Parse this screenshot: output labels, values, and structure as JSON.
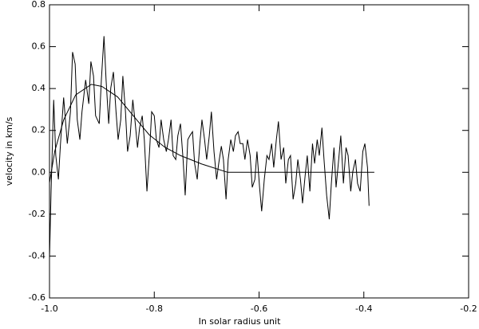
{
  "chart_data": {
    "type": "line",
    "xlabel": "In solar radius unit",
    "ylabel": "velocity in km/s",
    "xlim": [
      -1.0,
      -0.2
    ],
    "ylim": [
      -0.6,
      0.8
    ],
    "xticks": [
      {
        "value": -1.0,
        "label": "-1.0"
      },
      -0.8,
      -0.6,
      -0.4,
      -0.2
    ],
    "yticks": [
      -0.6,
      -0.4,
      -0.2,
      {
        "value": 0,
        "label": "0.0"
      },
      0.2,
      0.4,
      0.6,
      0.8
    ],
    "series": [
      {
        "color": "#000000",
        "x": [
          -1.0,
          -0.997,
          -0.992,
          -0.988,
          -0.983,
          -0.979,
          -0.973,
          -0.966,
          -0.96,
          -0.956,
          -0.951,
          -0.947,
          -0.942,
          -0.938,
          -0.931,
          -0.925,
          -0.921,
          -0.916,
          -0.912,
          -0.905,
          -0.901,
          -0.896,
          -0.892,
          -0.887,
          -0.883,
          -0.878,
          -0.873,
          -0.869,
          -0.864,
          -0.86,
          -0.855,
          -0.851,
          -0.846,
          -0.841,
          -0.837,
          -0.832,
          -0.828,
          -0.823,
          -0.819,
          -0.814,
          -0.809,
          -0.805,
          -0.8,
          -0.796,
          -0.791,
          -0.787,
          -0.782,
          -0.777,
          -0.773,
          -0.768,
          -0.764,
          -0.759,
          -0.755,
          -0.75,
          -0.745,
          -0.741,
          -0.736,
          -0.732,
          -0.727,
          -0.723,
          -0.718,
          -0.713,
          -0.709,
          -0.704,
          -0.7,
          -0.695,
          -0.691,
          -0.686,
          -0.681,
          -0.677,
          -0.672,
          -0.668,
          -0.663,
          -0.659,
          -0.654,
          -0.649,
          -0.645,
          -0.64,
          -0.636,
          -0.631,
          -0.627,
          -0.622,
          -0.617,
          -0.613,
          -0.608,
          -0.604,
          -0.599,
          -0.595,
          -0.59,
          -0.585,
          -0.581,
          -0.576,
          -0.572,
          -0.567,
          -0.563,
          -0.558,
          -0.553,
          -0.549,
          -0.544,
          -0.54,
          -0.535,
          -0.53,
          -0.526,
          -0.521,
          -0.517,
          -0.512,
          -0.508,
          -0.503,
          -0.498,
          -0.494,
          -0.489,
          -0.485,
          -0.48,
          -0.476,
          -0.471,
          -0.466,
          -0.462,
          -0.457,
          -0.453,
          -0.448,
          -0.444,
          -0.439,
          -0.434,
          -0.43,
          -0.425,
          -0.421,
          -0.416,
          -0.412,
          -0.407,
          -0.402,
          -0.398,
          -0.393,
          -0.39
        ],
        "values": [
          -0.414,
          -0.091,
          0.346,
          0.08,
          -0.034,
          0.137,
          0.357,
          0.137,
          0.289,
          0.574,
          0.517,
          0.251,
          0.156,
          0.289,
          0.441,
          0.327,
          0.529,
          0.46,
          0.27,
          0.232,
          0.441,
          0.65,
          0.441,
          0.232,
          0.403,
          0.479,
          0.289,
          0.156,
          0.251,
          0.46,
          0.289,
          0.099,
          0.175,
          0.346,
          0.251,
          0.118,
          0.213,
          0.27,
          0.156,
          -0.091,
          0.099,
          0.289,
          0.27,
          0.156,
          0.118,
          0.251,
          0.156,
          0.099,
          0.156,
          0.251,
          0.08,
          0.061,
          0.175,
          0.232,
          0.061,
          -0.11,
          0.156,
          0.175,
          0.194,
          0.042,
          -0.034,
          0.137,
          0.251,
          0.156,
          0.061,
          0.175,
          0.289,
          0.099,
          -0.034,
          0.042,
          0.125,
          0.061,
          -0.129,
          0.061,
          0.156,
          0.099,
          0.175,
          0.194,
          0.137,
          0.137,
          0.061,
          0.156,
          0.08,
          -0.072,
          -0.034,
          0.099,
          -0.072,
          -0.186,
          -0.034,
          0.08,
          0.061,
          0.137,
          0.023,
          0.156,
          0.243,
          0.061,
          0.118,
          -0.053,
          0.061,
          0.08,
          -0.129,
          -0.053,
          0.061,
          -0.034,
          -0.148,
          -0.015,
          0.08,
          -0.091,
          0.137,
          0.042,
          0.156,
          0.08,
          0.213,
          0.061,
          -0.11,
          -0.224,
          -0.053,
          0.118,
          -0.072,
          0.061,
          0.175,
          -0.053,
          0.118,
          0.08,
          -0.091,
          0.004,
          0.061,
          -0.053,
          -0.091,
          0.099,
          0.137,
          0.023,
          -0.16
        ]
      },
      {
        "color": "#000000",
        "x": [
          -1.0,
          -0.99,
          -0.973,
          -0.95,
          -0.92,
          -0.9,
          -0.87,
          -0.84,
          -0.81,
          -0.78,
          -0.75,
          -0.71,
          -0.66,
          -0.38
        ],
        "values": [
          -0.05,
          0.1,
          0.25,
          0.37,
          0.42,
          0.41,
          0.36,
          0.27,
          0.18,
          0.12,
          0.08,
          0.04,
          0.0,
          0.0
        ]
      }
    ]
  }
}
